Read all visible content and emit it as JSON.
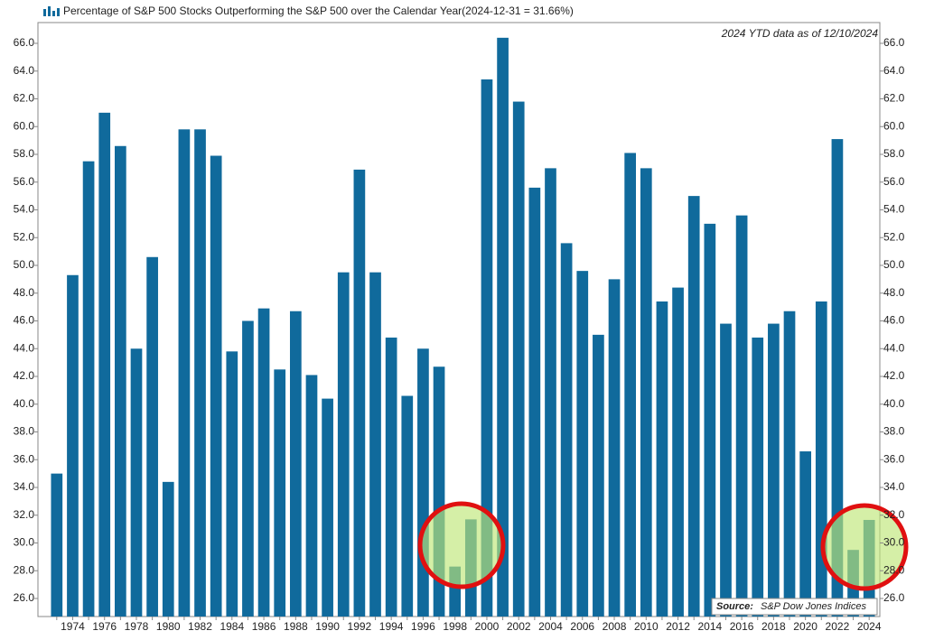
{
  "chart_data": {
    "type": "bar",
    "title": "Percentage of S&P 500 Stocks Outperforming the S&P 500 over the Calendar Year(2024-12-31 = 31.66%)",
    "annotation": "2024 YTD data as of 12/10/2024",
    "source_label": "Source:",
    "source": "S&P Dow Jones Indices",
    "color": "#106a9c",
    "categories": [
      null,
      "1974",
      null,
      "1976",
      null,
      "1978",
      null,
      "1980",
      null,
      "1982",
      null,
      "1984",
      null,
      "1986",
      null,
      "1988",
      null,
      "1990",
      null,
      "1992",
      null,
      "1994",
      null,
      "1996",
      null,
      "1998",
      null,
      "2000",
      null,
      "2002",
      null,
      "2004",
      null,
      "2006",
      null,
      "2008",
      null,
      "2010",
      null,
      "2012",
      null,
      "2014",
      null,
      "2016",
      null,
      "2018",
      null,
      "2020",
      null,
      "2022",
      null,
      "2024"
    ],
    "values": [
      35.0,
      49.3,
      57.5,
      61.0,
      58.6,
      44.0,
      50.6,
      34.4,
      59.8,
      59.8,
      57.9,
      43.8,
      46.0,
      46.9,
      42.5,
      46.7,
      42.1,
      40.4,
      49.5,
      56.9,
      49.5,
      44.8,
      40.6,
      44.0,
      42.7,
      28.3,
      31.7,
      63.4,
      66.4,
      61.8,
      55.6,
      57.0,
      51.6,
      49.6,
      45.0,
      49.0,
      58.1,
      57.0,
      47.4,
      48.4,
      55.0,
      53.0,
      45.8,
      53.6,
      44.8,
      45.8,
      46.7,
      36.6,
      47.4,
      59.1,
      29.5,
      31.66
    ],
    "ylim": [
      24.7,
      67.3
    ],
    "yticks": [
      {
        "value": 26,
        "label": "26.0"
      },
      {
        "value": 28,
        "label": "28.0"
      },
      {
        "value": 30,
        "label": "30.0"
      },
      {
        "value": 32,
        "label": "32.0"
      },
      {
        "value": 34,
        "label": "34.0"
      },
      {
        "value": 36,
        "label": "36.0"
      },
      {
        "value": 38,
        "label": "38.0"
      },
      {
        "value": 40,
        "label": "40.0"
      },
      {
        "value": 42,
        "label": "42.0"
      },
      {
        "value": 44,
        "label": "44.0"
      },
      {
        "value": 46,
        "label": "46.0"
      },
      {
        "value": 48,
        "label": "48.0"
      },
      {
        "value": 50,
        "label": "50.0"
      },
      {
        "value": 52,
        "label": "52.0"
      },
      {
        "value": 54,
        "label": "54.0"
      },
      {
        "value": 56,
        "label": "56.0"
      },
      {
        "value": 58,
        "label": "58.0"
      },
      {
        "value": 60,
        "label": "60.0"
      },
      {
        "value": 62,
        "label": "62.0"
      },
      {
        "value": 64,
        "label": "64.0"
      },
      {
        "value": 66,
        "label": "66.0"
      }
    ],
    "grid": false
  }
}
